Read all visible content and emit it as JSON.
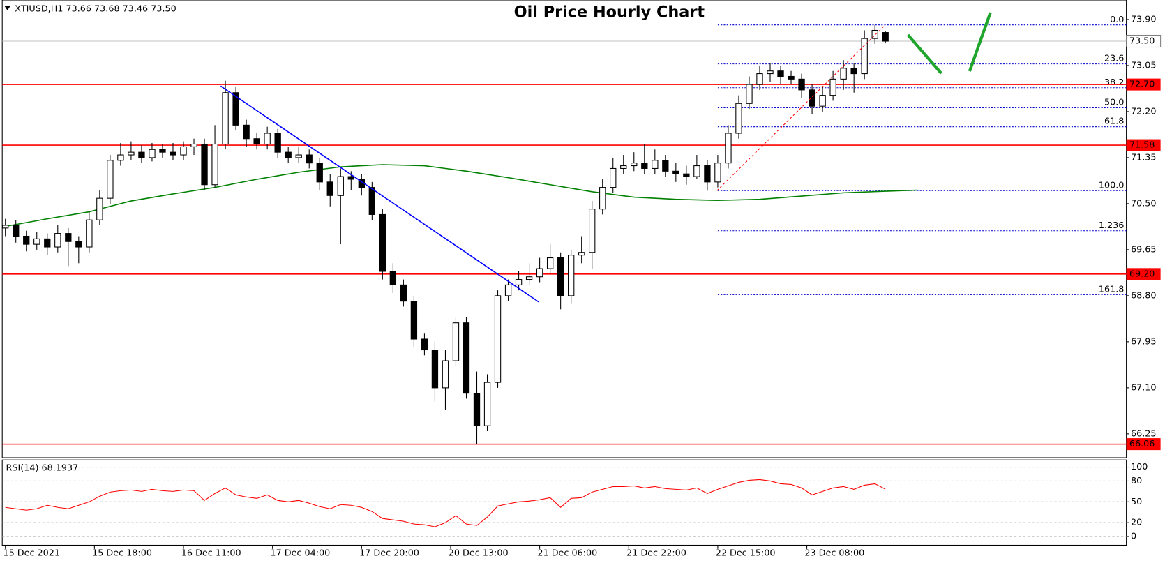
{
  "chart_data": {
    "type": "candlestick",
    "title": "Oil Price Hourly Chart",
    "header": "XTIUSD,H1  73.66 73.68 73.46 73.50",
    "up_color": "#ffffff",
    "down_color": "#000000",
    "open": [
      70.05,
      70.1,
      69.9,
      69.75,
      69.85,
      69.7,
      69.95,
      69.8,
      69.7,
      70.2,
      70.6,
      71.3,
      71.4,
      71.45,
      71.35,
      71.5,
      71.45,
      71.4,
      71.55,
      71.6,
      70.85,
      71.6,
      72.55,
      71.95,
      71.7,
      71.6,
      71.8,
      71.45,
      71.35,
      71.4,
      71.25,
      70.9,
      70.65,
      71.0,
      70.95,
      70.8,
      70.3,
      69.25,
      69.0,
      68.7,
      68.0,
      67.8,
      67.1,
      67.6,
      68.3,
      67.0,
      66.4,
      67.2,
      68.8,
      69.0,
      69.1,
      69.15,
      69.3,
      69.5,
      68.8,
      69.55,
      69.6,
      70.4,
      70.8,
      71.15,
      71.2,
      71.25,
      71.15,
      71.3,
      71.1,
      71.05,
      71.0,
      71.2,
      70.9,
      71.25,
      71.8,
      72.35,
      72.7,
      72.9,
      72.95,
      72.85,
      72.8,
      72.6,
      72.3,
      72.5,
      72.8,
      73.0,
      72.9,
      73.55,
      73.66
    ],
    "high": [
      70.22,
      70.2,
      70.0,
      69.98,
      69.95,
      70.1,
      70.05,
      69.9,
      70.35,
      70.75,
      71.4,
      71.62,
      71.65,
      71.58,
      71.62,
      71.6,
      71.62,
      71.65,
      71.7,
      71.7,
      71.95,
      72.77,
      72.65,
      72.05,
      71.8,
      71.92,
      71.88,
      71.55,
      71.55,
      71.5,
      71.35,
      71.05,
      71.15,
      71.1,
      71.05,
      70.9,
      70.4,
      69.4,
      69.1,
      68.8,
      68.1,
      67.95,
      67.8,
      68.4,
      68.4,
      67.4,
      67.35,
      68.9,
      69.1,
      69.25,
      69.4,
      69.5,
      69.75,
      69.6,
      69.65,
      69.9,
      70.55,
      70.95,
      71.35,
      71.4,
      71.45,
      71.6,
      71.5,
      71.4,
      71.25,
      71.2,
      71.4,
      71.3,
      71.4,
      71.95,
      72.5,
      72.85,
      73.05,
      73.1,
      73.05,
      72.95,
      72.9,
      72.7,
      72.65,
      72.95,
      73.15,
      73.1,
      73.7,
      73.8,
      73.68
    ],
    "low": [
      69.9,
      69.78,
      69.62,
      69.65,
      69.55,
      69.6,
      69.35,
      69.4,
      69.6,
      70.1,
      70.5,
      71.2,
      71.3,
      71.25,
      71.28,
      71.35,
      71.3,
      71.3,
      71.4,
      70.75,
      70.8,
      71.5,
      71.85,
      71.55,
      71.5,
      71.5,
      71.35,
      71.25,
      71.25,
      71.15,
      70.75,
      70.45,
      69.75,
      70.75,
      70.65,
      70.2,
      69.1,
      68.85,
      68.6,
      67.85,
      67.7,
      66.85,
      66.7,
      67.5,
      66.9,
      66.06,
      66.3,
      67.1,
      68.7,
      68.9,
      69.0,
      69.05,
      69.2,
      68.55,
      68.65,
      69.4,
      69.3,
      70.3,
      70.7,
      71.05,
      71.1,
      71.05,
      71.05,
      71.0,
      70.9,
      70.85,
      70.95,
      70.74,
      70.8,
      71.15,
      71.7,
      72.25,
      72.6,
      72.75,
      72.7,
      72.7,
      72.45,
      72.15,
      72.2,
      72.4,
      72.6,
      72.55,
      72.8,
      73.45,
      73.46
    ],
    "close": [
      70.1,
      69.9,
      69.75,
      69.85,
      69.7,
      69.95,
      69.8,
      69.7,
      70.2,
      70.6,
      71.3,
      71.4,
      71.45,
      71.35,
      71.5,
      71.45,
      71.4,
      71.55,
      71.6,
      70.85,
      71.6,
      72.55,
      71.95,
      71.7,
      71.6,
      71.8,
      71.45,
      71.35,
      71.4,
      71.25,
      70.9,
      70.65,
      71.0,
      70.95,
      70.8,
      70.3,
      69.25,
      69.0,
      68.7,
      68.0,
      67.8,
      67.1,
      67.6,
      68.3,
      67.0,
      66.4,
      67.2,
      68.8,
      69.0,
      69.1,
      69.15,
      69.3,
      69.5,
      68.8,
      69.55,
      69.6,
      70.4,
      70.8,
      71.15,
      71.2,
      71.25,
      71.15,
      71.3,
      71.1,
      71.05,
      71.0,
      71.2,
      70.9,
      71.25,
      71.8,
      72.35,
      72.7,
      72.9,
      72.95,
      72.85,
      72.8,
      72.6,
      72.3,
      72.5,
      72.8,
      73.0,
      72.9,
      73.55,
      73.7,
      73.5
    ],
    "ma": {
      "color": "#008000",
      "x": [
        0,
        4,
        8,
        12,
        16,
        20,
        24,
        28,
        32,
        36,
        40,
        44,
        48,
        52,
        56,
        60,
        64,
        68,
        72,
        76,
        80,
        84,
        87
      ],
      "values": [
        70.08,
        70.22,
        70.35,
        70.55,
        70.68,
        70.8,
        70.95,
        71.08,
        71.18,
        71.22,
        71.2,
        71.1,
        70.98,
        70.85,
        70.72,
        70.62,
        70.58,
        70.56,
        70.58,
        70.64,
        70.7,
        70.73,
        70.75
      ]
    },
    "xlim": [
      -0.3,
      107
    ],
    "ylim": [
      65.81,
      74.26
    ],
    "yticks": [
      {
        "value": 73.9,
        "label": "73.90"
      },
      73.05,
      {
        "value": 72.2,
        "label": "72.20"
      },
      71.35,
      {
        "value": 70.5,
        "label": "70.50"
      },
      69.65,
      {
        "value": 68.8,
        "label": "68.80"
      },
      67.95,
      {
        "value": 67.1,
        "label": "67.10"
      },
      66.25
    ],
    "xticks": [
      {
        "value": 0,
        "label": "15 Dec 2021"
      },
      {
        "value": 8.5,
        "label": "15 Dec 18:00"
      },
      {
        "value": 17,
        "label": "16 Dec 11:00"
      },
      {
        "value": 25.5,
        "label": "17 Dec 04:00"
      },
      {
        "value": 34,
        "label": "17 Dec 20:00"
      },
      {
        "value": 42.5,
        "label": "20 Dec 13:00"
      },
      {
        "value": 51,
        "label": "21 Dec 06:00"
      },
      {
        "value": 59.5,
        "label": "21 Dec 22:00"
      },
      {
        "value": 68,
        "label": "22 Dec 15:00"
      },
      {
        "value": 76.5,
        "label": "23 Dec 08:00"
      }
    ],
    "grid": false,
    "level_color": "#ff0000",
    "levels": [
      {
        "value": 72.7,
        "label": "72.70"
      },
      71.58,
      {
        "value": 69.2,
        "label": "69.20"
      },
      66.06
    ],
    "current": {
      "value": 73.5,
      "label": "73.50",
      "color": "#c0c0c0"
    },
    "fibonacci": {
      "color": "#0000cd",
      "levels": [
        {
          "value": 73.8,
          "label": "0.0"
        },
        {
          "value": 73.08,
          "label": "23.6"
        },
        {
          "value": 72.64,
          "label": "38.2"
        },
        {
          "value": 72.27,
          "label": "50.0"
        },
        {
          "value": 71.92,
          "label": "61.8"
        },
        {
          "value": 70.74,
          "label": "100.0"
        },
        {
          "value": 70.0,
          "label": "1.236"
        },
        {
          "value": 68.82,
          "label": "161.8"
        }
      ]
    },
    "rsi": {
      "title": "RSI(14) 68.1937",
      "color": "#ff0000",
      "ylim": [
        -12.5,
        110.4
      ],
      "yticks": [
        100,
        80,
        50,
        20,
        0
      ],
      "grid": true,
      "values": [
        42,
        40,
        38,
        40,
        45,
        42,
        40,
        45,
        50,
        58,
        64,
        66,
        67,
        65,
        68,
        66,
        65,
        67,
        66,
        52,
        62,
        70,
        60,
        57,
        55,
        60,
        52,
        50,
        52,
        48,
        43,
        40,
        46,
        45,
        42,
        36,
        26,
        24,
        22,
        18,
        17,
        14,
        20,
        30,
        18,
        16,
        28,
        44,
        47,
        50,
        51,
        53,
        56,
        42,
        55,
        56,
        64,
        68,
        72,
        72,
        73,
        70,
        72,
        69,
        68,
        67,
        70,
        62,
        68,
        73,
        78,
        81,
        82,
        80,
        76,
        75,
        70,
        60,
        65,
        70,
        72,
        68,
        74,
        76,
        68.19
      ]
    }
  }
}
